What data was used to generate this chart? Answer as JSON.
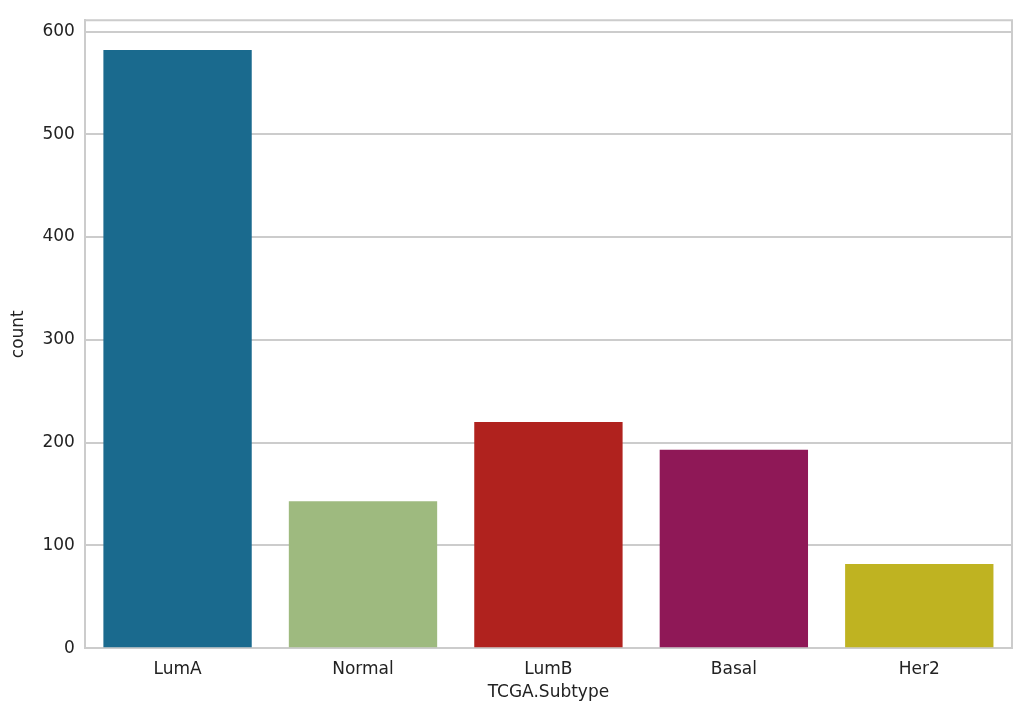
{
  "chart_data": {
    "type": "bar",
    "xlabel": "TCGA.Subtype",
    "ylabel": "count",
    "categories": [
      "LumA",
      "Normal",
      "LumB",
      "Basal",
      "Her2"
    ],
    "values": [
      582,
      143,
      220,
      193,
      82
    ],
    "colors": [
      "#1a6a8e",
      "#9eba7f",
      "#b0221e",
      "#8f1857",
      "#bfb321"
    ],
    "ylim": [
      0,
      611
    ],
    "yticks": [
      0,
      100,
      200,
      300,
      400,
      500,
      600
    ],
    "grid": "y"
  }
}
